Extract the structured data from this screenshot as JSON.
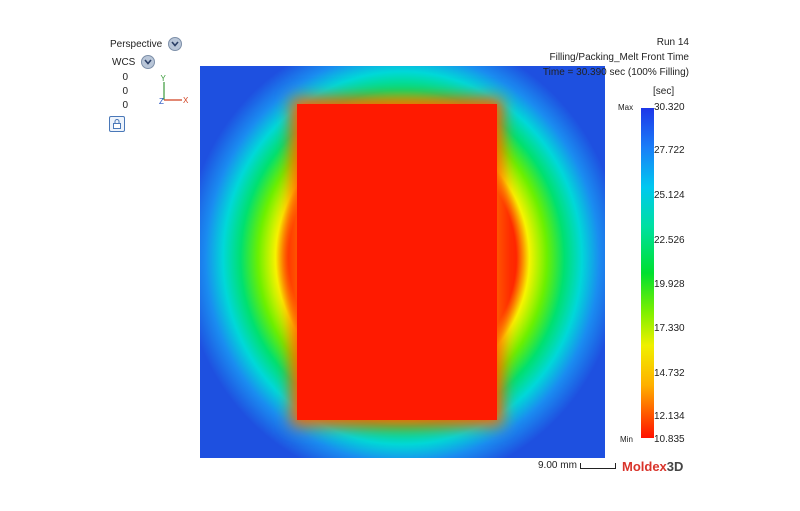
{
  "view": {
    "projection": "Perspective",
    "coordinate_system": "WCS",
    "coords": [
      "0",
      "0",
      "0"
    ],
    "axis_y": "Y",
    "axis_z": "Z",
    "axis_x": "X",
    "lock_icon": "lock-icon"
  },
  "header": {
    "run": "Run 14",
    "result_title": "Filling/Packing_Melt Front Time",
    "time_text": "Time = 30.390 sec (100% Filling)"
  },
  "legend": {
    "unit": "[sec]",
    "max_label": "Max",
    "min_label": "Min",
    "ticks": [
      "30.320",
      "27.722",
      "25.124",
      "22.526",
      "19.928",
      "17.330",
      "14.732",
      "12.134",
      "10.835"
    ],
    "colors": {
      "max": "#1e36e8",
      "min": "#ff1000"
    }
  },
  "footer": {
    "scale_text": "9.00 mm",
    "brand_main": "Moldex",
    "brand_suffix": "3D"
  }
}
